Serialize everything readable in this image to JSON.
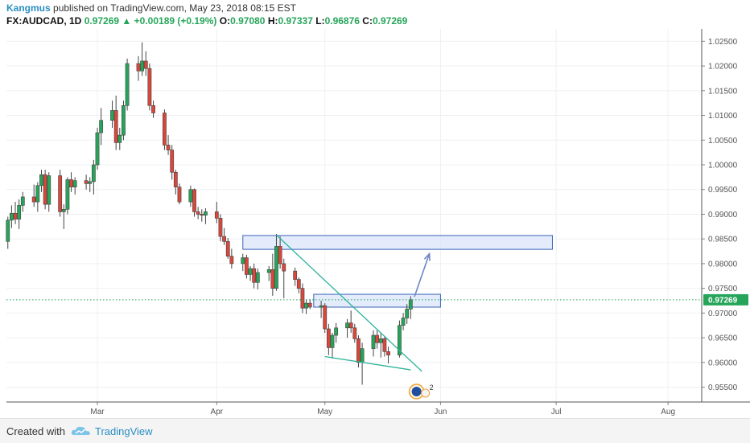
{
  "header": {
    "author": "Kangmus",
    "published_text": "published on TradingView.com, May 23, 2018 08:15 EST",
    "symbol": "FX:AUDCAD, 1D",
    "last": "0.97269",
    "change": "+0.00189 (+0.19%)",
    "open_label": "O:",
    "open": "0.97080",
    "high_label": "H:",
    "high": "0.97337",
    "low_label": "L:",
    "low": "0.96876",
    "close_label": "C:",
    "close": "0.97269"
  },
  "footer": {
    "created_with": "Created with",
    "brand": "TradingView"
  },
  "colors": {
    "up": "#26a55a",
    "down": "#d9473b",
    "box": "#dbe6fb",
    "box_border": "#3a63b8",
    "trend": "#2bb39a",
    "price_tag": "#26a55a"
  },
  "chart_data": {
    "type": "candlestick",
    "symbol": "FX:AUDCAD",
    "interval": "1D",
    "ylim": [
      0.952,
      1.0275
    ],
    "y_ticks": [
      "0.95500",
      "0.96000",
      "0.96500",
      "0.97000",
      "0.97500",
      "0.98000",
      "0.98500",
      "0.99000",
      "0.99500",
      "1.00000",
      "1.00500",
      "1.01000",
      "1.01500",
      "1.02000",
      "1.02500"
    ],
    "x_ticks": [
      {
        "label": "Mar",
        "date": "2018-03-01"
      },
      {
        "label": "Apr",
        "date": "2018-04-02"
      },
      {
        "label": "May",
        "date": "2018-05-01"
      },
      {
        "label": "Jun",
        "date": "2018-06-01"
      },
      {
        "label": "Jul",
        "date": "2018-07-02"
      },
      {
        "label": "Aug",
        "date": "2018-08-01"
      }
    ],
    "last_price_label": "0.97269",
    "candles": [
      {
        "date": "2018-01-31",
        "o": 0.9865,
        "h": 0.9882,
        "l": 0.982,
        "c": 0.9835
      },
      {
        "date": "2018-02-01",
        "o": 0.9835,
        "h": 0.986,
        "l": 0.981,
        "c": 0.982
      },
      {
        "date": "2018-02-02",
        "o": 0.982,
        "h": 0.985,
        "l": 0.9785,
        "c": 0.9845
      },
      {
        "date": "2018-02-05",
        "o": 0.9845,
        "h": 0.9895,
        "l": 0.983,
        "c": 0.9888
      },
      {
        "date": "2018-02-06",
        "o": 0.9888,
        "h": 0.9918,
        "l": 0.9872,
        "c": 0.9902
      },
      {
        "date": "2018-02-07",
        "o": 0.9902,
        "h": 0.9925,
        "l": 0.988,
        "c": 0.989
      },
      {
        "date": "2018-02-08",
        "o": 0.989,
        "h": 0.993,
        "l": 0.987,
        "c": 0.9918
      },
      {
        "date": "2018-02-09",
        "o": 0.9918,
        "h": 0.9945,
        "l": 0.9905,
        "c": 0.9935
      },
      {
        "date": "2018-02-12",
        "o": 0.9935,
        "h": 0.996,
        "l": 0.9915,
        "c": 0.9925
      },
      {
        "date": "2018-02-13",
        "o": 0.9925,
        "h": 0.9965,
        "l": 0.9905,
        "c": 0.9958
      },
      {
        "date": "2018-02-14",
        "o": 0.9958,
        "h": 0.999,
        "l": 0.9945,
        "c": 0.998
      },
      {
        "date": "2018-02-15",
        "o": 0.998,
        "h": 0.999,
        "l": 0.991,
        "c": 0.992
      },
      {
        "date": "2018-02-16",
        "o": 0.992,
        "h": 0.9985,
        "l": 0.9905,
        "c": 0.9978
      },
      {
        "date": "2018-02-19",
        "o": 0.9978,
        "h": 0.999,
        "l": 0.9895,
        "c": 0.9905
      },
      {
        "date": "2018-02-20",
        "o": 0.9905,
        "h": 0.992,
        "l": 0.987,
        "c": 0.991
      },
      {
        "date": "2018-02-21",
        "o": 0.991,
        "h": 0.9975,
        "l": 0.99,
        "c": 0.997
      },
      {
        "date": "2018-02-22",
        "o": 0.997,
        "h": 0.9985,
        "l": 0.9945,
        "c": 0.9955
      },
      {
        "date": "2018-02-23",
        "o": 0.9955,
        "h": 0.9975,
        "l": 0.994,
        "c": 0.9968
      },
      {
        "date": "2018-02-26",
        "o": 0.9968,
        "h": 0.998,
        "l": 0.995,
        "c": 0.9962
      },
      {
        "date": "2018-02-27",
        "o": 0.9962,
        "h": 0.9975,
        "l": 0.9945,
        "c": 0.9966
      },
      {
        "date": "2018-02-28",
        "o": 0.9966,
        "h": 1.001,
        "l": 0.994,
        "c": 1.0
      },
      {
        "date": "2018-03-01",
        "o": 1.0,
        "h": 1.0075,
        "l": 0.999,
        "c": 1.0065
      },
      {
        "date": "2018-03-02",
        "o": 1.0065,
        "h": 1.0115,
        "l": 1.004,
        "c": 1.009
      },
      {
        "date": "2018-03-05",
        "o": 1.009,
        "h": 1.013,
        "l": 1.0075,
        "c": 1.011
      },
      {
        "date": "2018-03-06",
        "o": 1.011,
        "h": 1.014,
        "l": 1.003,
        "c": 1.0045
      },
      {
        "date": "2018-03-07",
        "o": 1.0045,
        "h": 1.0075,
        "l": 1.003,
        "c": 1.006
      },
      {
        "date": "2018-03-08",
        "o": 1.006,
        "h": 1.013,
        "l": 1.005,
        "c": 1.012
      },
      {
        "date": "2018-03-09",
        "o": 1.012,
        "h": 1.0215,
        "l": 1.011,
        "c": 1.0205
      },
      {
        "date": "2018-03-12",
        "o": 1.0205,
        "h": 1.022,
        "l": 1.017,
        "c": 1.019
      },
      {
        "date": "2018-03-13",
        "o": 1.019,
        "h": 1.0248,
        "l": 1.018,
        "c": 1.021
      },
      {
        "date": "2018-03-14",
        "o": 1.021,
        "h": 1.023,
        "l": 1.018,
        "c": 1.0195
      },
      {
        "date": "2018-03-15",
        "o": 1.0195,
        "h": 1.0205,
        "l": 1.011,
        "c": 1.012
      },
      {
        "date": "2018-03-16",
        "o": 1.012,
        "h": 1.013,
        "l": 1.0095,
        "c": 1.0105
      },
      {
        "date": "2018-03-19",
        "o": 1.0105,
        "h": 1.0112,
        "l": 1.003,
        "c": 1.004
      },
      {
        "date": "2018-03-20",
        "o": 1.004,
        "h": 1.006,
        "l": 1.002,
        "c": 1.003
      },
      {
        "date": "2018-03-21",
        "o": 1.003,
        "h": 1.004,
        "l": 0.997,
        "c": 0.9985
      },
      {
        "date": "2018-03-22",
        "o": 0.9985,
        "h": 0.999,
        "l": 0.994,
        "c": 0.9955
      },
      {
        "date": "2018-03-23",
        "o": 0.9955,
        "h": 0.9962,
        "l": 0.992,
        "c": 0.9925
      },
      {
        "date": "2018-03-26",
        "o": 0.9925,
        "h": 0.9958,
        "l": 0.9915,
        "c": 0.995
      },
      {
        "date": "2018-03-27",
        "o": 0.995,
        "h": 0.9952,
        "l": 0.9895,
        "c": 0.9905
      },
      {
        "date": "2018-03-28",
        "o": 0.9905,
        "h": 0.9915,
        "l": 0.989,
        "c": 0.99
      },
      {
        "date": "2018-03-29",
        "o": 0.99,
        "h": 0.991,
        "l": 0.9885,
        "c": 0.9898
      },
      {
        "date": "2018-03-30",
        "o": 0.9898,
        "h": 0.9912,
        "l": 0.988,
        "c": 0.9905
      },
      {
        "date": "2018-04-02",
        "o": 0.9905,
        "h": 0.9925,
        "l": 0.9882,
        "c": 0.9892
      },
      {
        "date": "2018-04-03",
        "o": 0.9892,
        "h": 0.99,
        "l": 0.9845,
        "c": 0.9855
      },
      {
        "date": "2018-04-04",
        "o": 0.9855,
        "h": 0.9872,
        "l": 0.9838,
        "c": 0.9845
      },
      {
        "date": "2018-04-05",
        "o": 0.9845,
        "h": 0.9852,
        "l": 0.981,
        "c": 0.9815
      },
      {
        "date": "2018-04-06",
        "o": 0.9815,
        "h": 0.983,
        "l": 0.979,
        "c": 0.98
      },
      {
        "date": "2018-04-09",
        "o": 0.98,
        "h": 0.982,
        "l": 0.9785,
        "c": 0.9812
      },
      {
        "date": "2018-04-10",
        "o": 0.9812,
        "h": 0.9818,
        "l": 0.977,
        "c": 0.9778
      },
      {
        "date": "2018-04-11",
        "o": 0.9778,
        "h": 0.9795,
        "l": 0.9765,
        "c": 0.979
      },
      {
        "date": "2018-04-12",
        "o": 0.979,
        "h": 0.98,
        "l": 0.975,
        "c": 0.9762
      },
      {
        "date": "2018-04-13",
        "o": 0.9762,
        "h": 0.979,
        "l": 0.9748,
        "c": 0.9782
      },
      {
        "date": "2018-04-16",
        "o": 0.9782,
        "h": 0.9795,
        "l": 0.9765,
        "c": 0.9788
      },
      {
        "date": "2018-04-17",
        "o": 0.9788,
        "h": 0.982,
        "l": 0.9735,
        "c": 0.975
      },
      {
        "date": "2018-04-18",
        "o": 0.975,
        "h": 0.986,
        "l": 0.9745,
        "c": 0.9835
      },
      {
        "date": "2018-04-19",
        "o": 0.9835,
        "h": 0.9855,
        "l": 0.979,
        "c": 0.98
      },
      {
        "date": "2018-04-20",
        "o": 0.98,
        "h": 0.981,
        "l": 0.973,
        "c": 0.9785
      },
      {
        "date": "2018-04-23",
        "o": 0.9785,
        "h": 0.9792,
        "l": 0.9755,
        "c": 0.9768
      },
      {
        "date": "2018-04-24",
        "o": 0.9768,
        "h": 0.9772,
        "l": 0.974,
        "c": 0.975
      },
      {
        "date": "2018-04-25",
        "o": 0.975,
        "h": 0.976,
        "l": 0.97,
        "c": 0.971
      },
      {
        "date": "2018-04-26",
        "o": 0.971,
        "h": 0.9728,
        "l": 0.9698,
        "c": 0.972
      },
      {
        "date": "2018-04-27",
        "o": 0.972,
        "h": 0.9728,
        "l": 0.9708,
        "c": 0.9712
      },
      {
        "date": "2018-04-30",
        "o": 0.9712,
        "h": 0.9725,
        "l": 0.969,
        "c": 0.9715
      },
      {
        "date": "2018-05-01",
        "o": 0.9715,
        "h": 0.972,
        "l": 0.966,
        "c": 0.9668
      },
      {
        "date": "2018-05-02",
        "o": 0.9668,
        "h": 0.9678,
        "l": 0.9615,
        "c": 0.963
      },
      {
        "date": "2018-05-03",
        "o": 0.963,
        "h": 0.966,
        "l": 0.9608,
        "c": 0.9655
      },
      {
        "date": "2018-05-04",
        "o": 0.9655,
        "h": 0.968,
        "l": 0.964,
        "c": 0.967
      },
      {
        "date": "2018-05-07",
        "o": 0.967,
        "h": 0.9688,
        "l": 0.965,
        "c": 0.968
      },
      {
        "date": "2018-05-08",
        "o": 0.968,
        "h": 0.9705,
        "l": 0.966,
        "c": 0.967
      },
      {
        "date": "2018-05-09",
        "o": 0.967,
        "h": 0.9678,
        "l": 0.964,
        "c": 0.9648
      },
      {
        "date": "2018-05-10",
        "o": 0.9648,
        "h": 0.9655,
        "l": 0.959,
        "c": 0.96
      },
      {
        "date": "2018-05-11",
        "o": 0.96,
        "h": 0.964,
        "l": 0.9555,
        "c": 0.9628
      },
      {
        "date": "2018-05-14",
        "o": 0.9628,
        "h": 0.9665,
        "l": 0.9612,
        "c": 0.9655
      },
      {
        "date": "2018-05-15",
        "o": 0.9655,
        "h": 0.9665,
        "l": 0.9628,
        "c": 0.964
      },
      {
        "date": "2018-05-16",
        "o": 0.964,
        "h": 0.966,
        "l": 0.961,
        "c": 0.9648
      },
      {
        "date": "2018-05-17",
        "o": 0.9648,
        "h": 0.9652,
        "l": 0.9612,
        "c": 0.9622
      },
      {
        "date": "2018-05-18",
        "o": 0.9622,
        "h": 0.9632,
        "l": 0.9598,
        "c": 0.9615
      },
      {
        "date": "2018-05-21",
        "o": 0.9615,
        "h": 0.9685,
        "l": 0.961,
        "c": 0.9675
      },
      {
        "date": "2018-05-22",
        "o": 0.9675,
        "h": 0.97,
        "l": 0.9665,
        "c": 0.969
      },
      {
        "date": "2018-05-23",
        "o": 0.969,
        "h": 0.9718,
        "l": 0.9678,
        "c": 0.9708
      },
      {
        "date": "2018-05-24",
        "o": 0.9708,
        "h": 0.9734,
        "l": 0.9688,
        "c": 0.9727
      }
    ],
    "annotations": {
      "resistance_zone": {
        "date_from": "2018-04-09",
        "date_to": "2018-07-01",
        "price_from": 0.9829,
        "price_to": 0.9857
      },
      "breakout_zone": {
        "date_from": "2018-04-28",
        "date_to": "2018-06-01",
        "price_from": 0.9712,
        "price_to": 0.9738
      },
      "arrow": {
        "from_date": "2018-05-25",
        "from_price": 0.9733,
        "to_date": "2018-05-29",
        "to_price": 0.982
      },
      "trendline_upper": {
        "from_date": "2018-04-18",
        "from_price": 0.9858,
        "to_date": "2018-05-27",
        "to_price": 0.9582
      },
      "trendline_lower": {
        "from_date": "2018-05-01",
        "from_price": 0.9612,
        "to_date": "2018-05-24",
        "to_price": 0.9585
      },
      "event_badge": {
        "date": "2018-05-26",
        "count": "2"
      }
    }
  }
}
